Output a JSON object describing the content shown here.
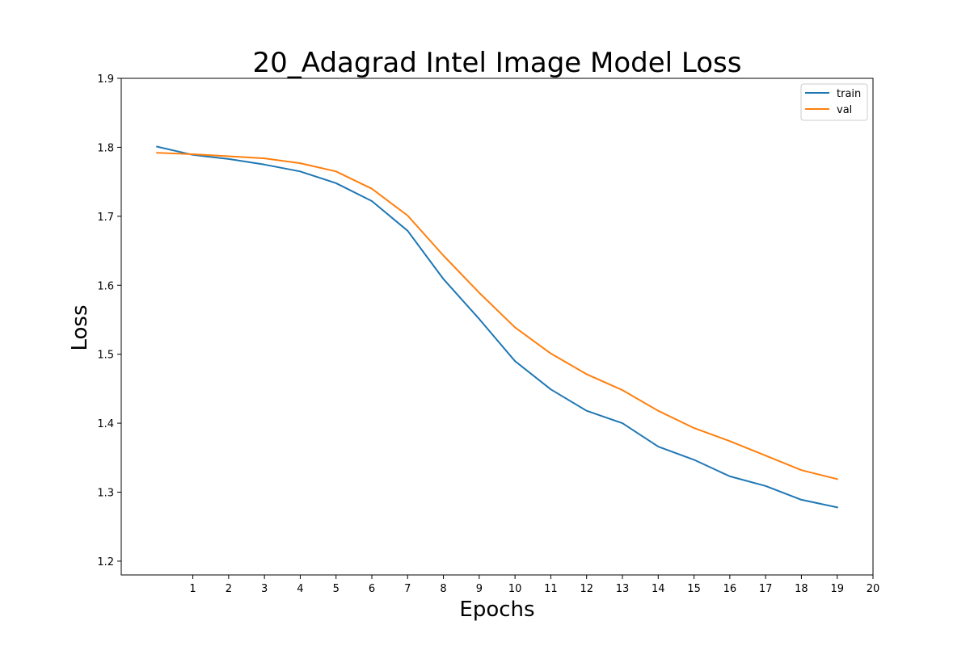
{
  "chart_data": {
    "type": "line",
    "title": "20_Adagrad Intel Image Model Loss",
    "xlabel": "Epochs",
    "ylabel": "Loss",
    "xlim": [
      -1,
      20
    ],
    "ylim": [
      1.18,
      1.9
    ],
    "xticks": [
      1,
      2,
      3,
      4,
      5,
      6,
      7,
      8,
      9,
      10,
      11,
      12,
      13,
      14,
      15,
      16,
      17,
      18,
      19,
      20
    ],
    "yticks": [
      1.2,
      1.3,
      1.4,
      1.5,
      1.6,
      1.7,
      1.8,
      1.9
    ],
    "ytick_labels": [
      "1.2",
      "1.3",
      "1.4",
      "1.5",
      "1.6",
      "1.7",
      "1.8",
      "1.9"
    ],
    "grid": false,
    "legend_position": "top-right",
    "x": [
      0,
      1,
      2,
      3,
      4,
      5,
      6,
      7,
      8,
      9,
      10,
      11,
      12,
      13,
      14,
      15,
      16,
      17,
      18,
      19
    ],
    "series": [
      {
        "name": "train",
        "color": "#1f77b4",
        "values": [
          1.801,
          1.789,
          1.783,
          1.775,
          1.765,
          1.748,
          1.722,
          1.679,
          1.609,
          1.551,
          1.49,
          1.449,
          1.418,
          1.4,
          1.366,
          1.347,
          1.323,
          1.309,
          1.289,
          1.278
        ]
      },
      {
        "name": "val",
        "color": "#ff7f0e",
        "values": [
          1.792,
          1.79,
          1.787,
          1.784,
          1.777,
          1.765,
          1.74,
          1.701,
          1.643,
          1.589,
          1.539,
          1.501,
          1.471,
          1.448,
          1.418,
          1.393,
          1.374,
          1.353,
          1.332,
          1.319
        ]
      }
    ]
  }
}
